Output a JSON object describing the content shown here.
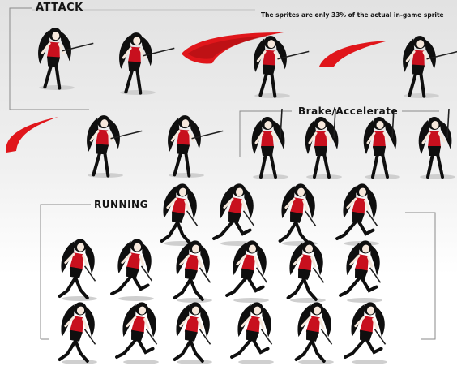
{
  "sections": {
    "attack": {
      "title": "ATTACK",
      "frames": 10
    },
    "brake": {
      "title": "Brake/Accelerate",
      "frames": 4
    },
    "running": {
      "title": "RUNNING",
      "frames": 17
    }
  },
  "note": "The sprites are only 33% of the actual in-game sprite",
  "colors": {
    "outfit": "#c8101e",
    "hair": "#0f0f0f",
    "skin": "#f6e8dc",
    "slash": "#e0161b",
    "sword": "#202020",
    "shadow": "#cfcfcf"
  }
}
